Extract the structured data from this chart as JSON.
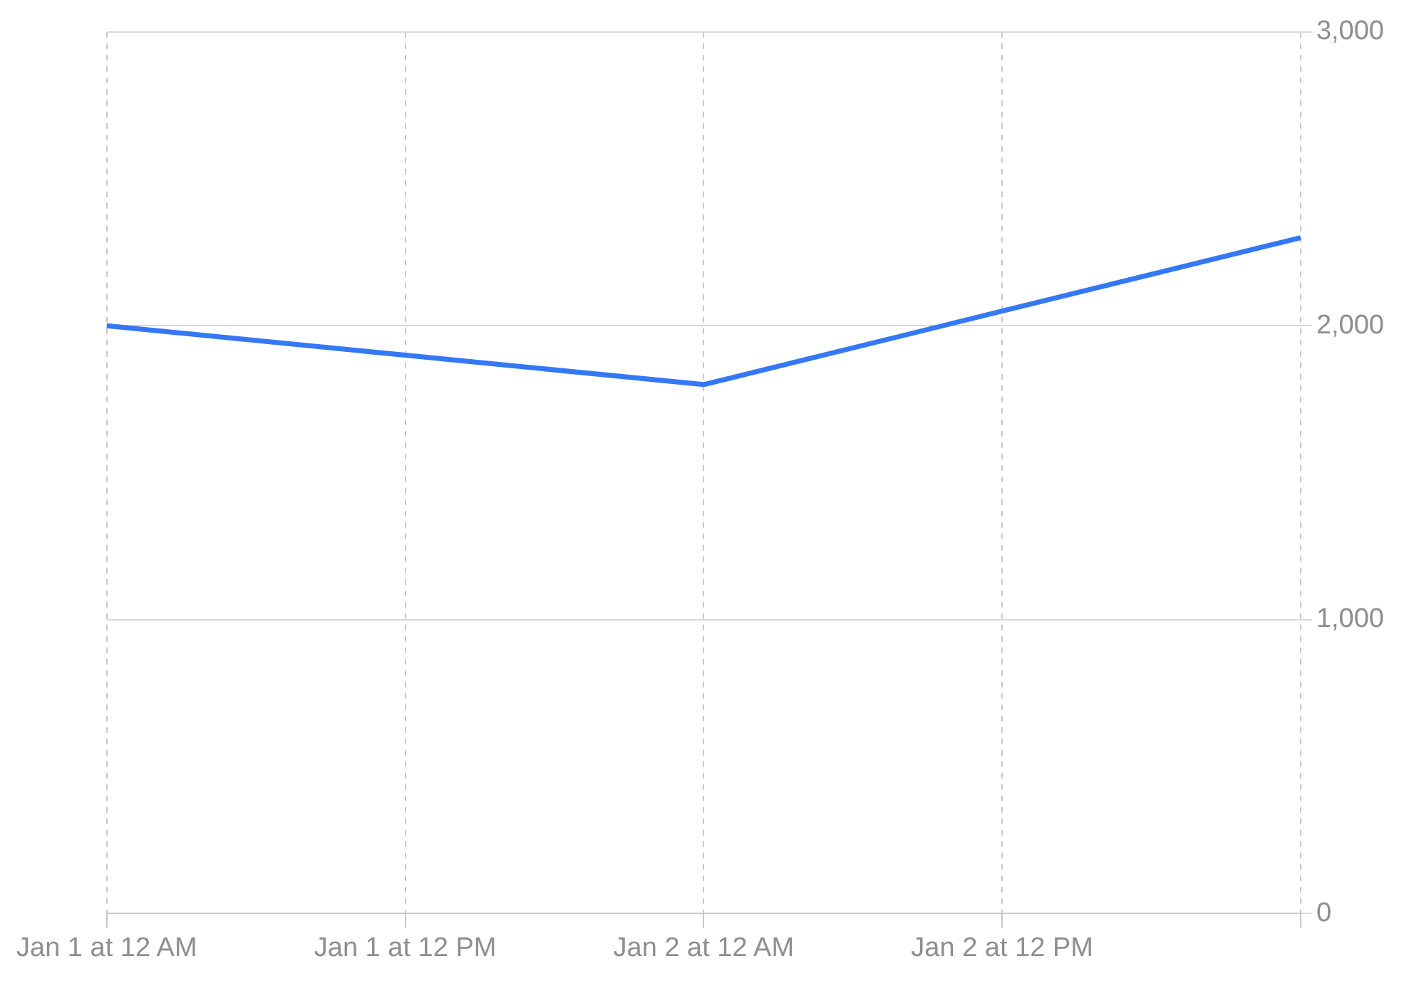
{
  "chart_data": {
    "type": "line",
    "categories": [
      "Jan 1 at 12 AM",
      "Jan 1 at 12 PM",
      "Jan 2 at 12 AM",
      "Jan 2 at 12 PM",
      null
    ],
    "series": [
      {
        "color": "#3478f6",
        "values": [
          2000,
          1900,
          1800,
          2050,
          2300
        ]
      }
    ],
    "ylim": [
      0,
      3000
    ],
    "yticks": [
      {
        "value": 0,
        "label": "0"
      },
      {
        "value": 1000,
        "label": "1,000"
      },
      {
        "value": 2000,
        "label": "2,000"
      },
      {
        "value": 3000,
        "label": "3,000"
      }
    ],
    "grid": true,
    "legend": false,
    "marker": "none",
    "line_style": "solid"
  }
}
